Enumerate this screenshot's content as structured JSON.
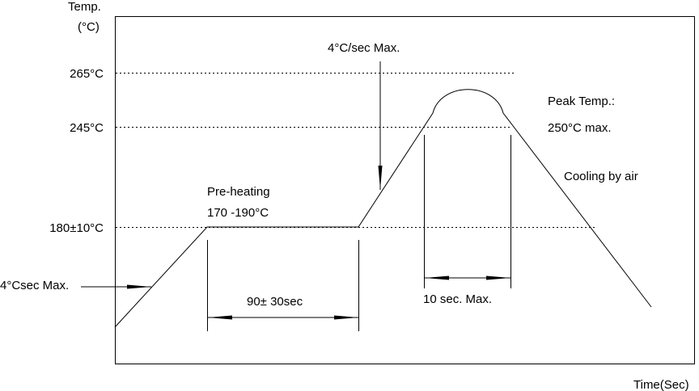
{
  "y_axis": {
    "title": "Temp.",
    "unit": "(°C)"
  },
  "x_axis": {
    "title": "Time(Sec)"
  },
  "levels": [
    {
      "label": "265°C",
      "value": 265
    },
    {
      "label": "245°C",
      "value": 245
    },
    {
      "label": "180±10°C",
      "value": 180
    }
  ],
  "annotations": {
    "preheat_rate": "4°Csec Max.",
    "ramp_rate": "4°C/sec Max.",
    "preheat_title": "Pre-heating",
    "preheat_range": "170 -190°C",
    "preheat_time": "90± 30sec",
    "peak_time": "10 sec. Max.",
    "peak_title": "Peak Temp.:",
    "peak_value": "250°C max.",
    "cooling": "Cooling by air"
  },
  "colors": {
    "line": "#000000",
    "background": "#ffffff"
  }
}
